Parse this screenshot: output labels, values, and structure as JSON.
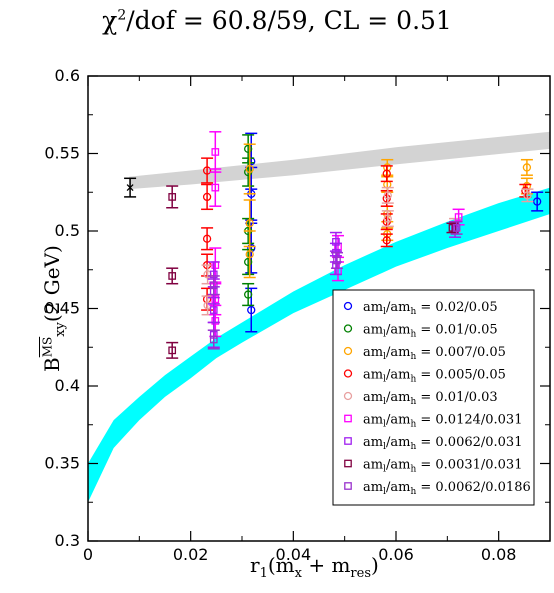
{
  "title": {
    "main": "χ",
    "sup": "2",
    "rest": "/dof = 60.8/59, CL = 0.51"
  },
  "xlabel": {
    "main": "r",
    "sub1": "1",
    "mid": "(m",
    "sub2": "x",
    "mid2": " + m",
    "sub3": "res",
    "end": ")"
  },
  "ylabel": {
    "main": "B",
    "sub": "xy",
    "sup": "MS",
    "end": "(2 GeV)"
  },
  "chart_data": {
    "type": "scatter",
    "xlim": [
      0,
      0.09
    ],
    "ylim": [
      0.3,
      0.6
    ],
    "xticks": [
      "0",
      "0.02",
      "0.04",
      "0.06",
      "0.08"
    ],
    "yticks": [
      "0.3",
      "0.35",
      "0.4",
      "0.45",
      "0.5",
      "0.55",
      "0.6"
    ],
    "xtick_values": [
      0,
      0.02,
      0.04,
      0.06,
      0.08
    ],
    "ytick_values": [
      0.3,
      0.35,
      0.4,
      0.45,
      0.5,
      0.55,
      0.6
    ],
    "legend_position": "bottom-right",
    "bands": [
      {
        "name": "grey-band",
        "color": "#d3d3d3",
        "x": [
          0.008,
          0.02,
          0.04,
          0.06,
          0.09
        ],
        "lower": [
          0.527,
          0.53,
          0.536,
          0.543,
          0.553
        ],
        "upper": [
          0.535,
          0.539,
          0.546,
          0.554,
          0.564
        ]
      },
      {
        "name": "cyan-band",
        "color": "#00ffff",
        "x": [
          0,
          0.005,
          0.01,
          0.015,
          0.02,
          0.025,
          0.03,
          0.04,
          0.05,
          0.06,
          0.07,
          0.08,
          0.09
        ],
        "lower": [
          0.325,
          0.36,
          0.378,
          0.393,
          0.405,
          0.418,
          0.428,
          0.447,
          0.462,
          0.477,
          0.489,
          0.5,
          0.511
        ],
        "upper": [
          0.35,
          0.378,
          0.393,
          0.407,
          0.419,
          0.431,
          0.441,
          0.461,
          0.478,
          0.493,
          0.506,
          0.518,
          0.528
        ]
      }
    ],
    "extra_point": {
      "x": 0.0082,
      "y": 0.528,
      "err": 0.006,
      "color": "#000000",
      "marker": "x"
    },
    "series": [
      {
        "name": "am_l/am_h = 0.02/0.05",
        "legend_main": "am",
        "legend_sub1": "l",
        "legend_mid": "/am",
        "legend_sub2": "h",
        "legend_val": " = 0.02/0.05",
        "color": "#0000ff",
        "marker": "circle",
        "points": [
          [
            0.0318,
            0.545,
            0.018
          ],
          [
            0.0318,
            0.524,
            0.017
          ],
          [
            0.0318,
            0.489,
            0.016
          ],
          [
            0.0318,
            0.449,
            0.014
          ],
          [
            0.0875,
            0.519,
            0.006
          ]
        ]
      },
      {
        "name": "am_l/am_h = 0.01/0.05",
        "legend_main": "am",
        "legend_sub1": "l",
        "legend_mid": "/am",
        "legend_sub2": "h",
        "legend_val": " = 0.01/0.05",
        "color": "#008000",
        "marker": "circle",
        "points": [
          [
            0.0312,
            0.553,
            0.009
          ],
          [
            0.0312,
            0.538,
            0.009
          ],
          [
            0.0312,
            0.5,
            0.008
          ],
          [
            0.0312,
            0.48,
            0.008
          ],
          [
            0.0312,
            0.459,
            0.007
          ]
        ]
      },
      {
        "name": "am_l/am_h = 0.007/0.05",
        "legend_main": "am",
        "legend_sub1": "l",
        "legend_mid": "/am",
        "legend_sub2": "h",
        "legend_val": " = 0.007/0.05",
        "color": "#ffa500",
        "marker": "circle",
        "points": [
          [
            0.0315,
            0.54,
            0.016
          ],
          [
            0.0315,
            0.505,
            0.015
          ],
          [
            0.0315,
            0.485,
            0.015
          ],
          [
            0.0583,
            0.541,
            0.005
          ],
          [
            0.0583,
            0.53,
            0.005
          ],
          [
            0.0583,
            0.511,
            0.005
          ],
          [
            0.0583,
            0.498,
            0.004
          ],
          [
            0.0855,
            0.541,
            0.005
          ],
          [
            0.0855,
            0.529,
            0.005
          ]
        ]
      },
      {
        "name": "am_l/am_h = 0.005/0.05",
        "legend_main": "am",
        "legend_sub1": "l",
        "legend_mid": "/am",
        "legend_sub2": "h",
        "legend_val": " = 0.005/0.05",
        "color": "#ff0000",
        "marker": "circle",
        "points": [
          [
            0.0232,
            0.539,
            0.008
          ],
          [
            0.0232,
            0.522,
            0.008
          ],
          [
            0.0232,
            0.495,
            0.007
          ],
          [
            0.0232,
            0.478,
            0.007
          ],
          [
            0.0232,
            0.456,
            0.007
          ],
          [
            0.0582,
            0.537,
            0.005
          ],
          [
            0.0582,
            0.521,
            0.005
          ],
          [
            0.0582,
            0.506,
            0.005
          ],
          [
            0.0582,
            0.494,
            0.004
          ],
          [
            0.0852,
            0.526,
            0.004
          ]
        ]
      },
      {
        "name": "am_l/am_h = 0.01/0.03",
        "legend_main": "am",
        "legend_sub1": "l",
        "legend_mid": "/am",
        "legend_sub2": "h",
        "legend_val": " = 0.01/0.03",
        "color": "#e8a0a0",
        "marker": "circle",
        "points": [
          [
            0.0233,
            0.472,
            0.006
          ],
          [
            0.0233,
            0.452,
            0.006
          ],
          [
            0.0584,
            0.523,
            0.005
          ],
          [
            0.0584,
            0.508,
            0.005
          ],
          [
            0.0856,
            0.523,
            0.004
          ],
          [
            0.0715,
            0.504,
            0.004
          ]
        ]
      },
      {
        "name": "am_l/am_h = 0.0124/0.031",
        "legend_main": "am",
        "legend_sub1": "l",
        "legend_mid": "/am",
        "legend_sub2": "h",
        "legend_val": " = 0.0124/0.031",
        "color": "#ff00ff",
        "marker": "square",
        "points": [
          [
            0.0248,
            0.551,
            0.013
          ],
          [
            0.0248,
            0.528,
            0.012
          ],
          [
            0.0248,
            0.478,
            0.011
          ],
          [
            0.0248,
            0.456,
            0.01
          ],
          [
            0.0248,
            0.442,
            0.01
          ],
          [
            0.0487,
            0.49,
            0.007
          ],
          [
            0.0487,
            0.474,
            0.006
          ],
          [
            0.0722,
            0.509,
            0.005
          ]
        ]
      },
      {
        "name": "am_l/am_h = 0.0062/0.031",
        "legend_main": "am",
        "legend_sub1": "l",
        "legend_mid": "/am",
        "legend_sub2": "h",
        "legend_val": " = 0.0062/0.031",
        "color": "#a020f0",
        "marker": "square",
        "points": [
          [
            0.0245,
            0.472,
            0.008
          ],
          [
            0.0245,
            0.461,
            0.008
          ],
          [
            0.0245,
            0.449,
            0.008
          ],
          [
            0.0245,
            0.433,
            0.008
          ],
          [
            0.0483,
            0.493,
            0.006
          ],
          [
            0.0483,
            0.486,
            0.006
          ],
          [
            0.0483,
            0.478,
            0.006
          ],
          [
            0.0715,
            0.501,
            0.005
          ]
        ]
      },
      {
        "name": "am_l/am_h = 0.0031/0.031",
        "legend_main": "am",
        "legend_sub1": "l",
        "legend_mid": "/am",
        "legend_sub2": "h",
        "legend_val": " = 0.0031/0.031",
        "color": "#800040",
        "marker": "square",
        "points": [
          [
            0.0164,
            0.522,
            0.007
          ],
          [
            0.0164,
            0.471,
            0.005
          ],
          [
            0.0164,
            0.423,
            0.005
          ],
          [
            0.071,
            0.502,
            0.003
          ]
        ]
      },
      {
        "name": "am_l/am_h = 0.0062/0.0186",
        "legend_main": "am",
        "legend_sub1": "l",
        "legend_mid": "/am",
        "legend_sub2": "h",
        "legend_val": " = 0.0062/0.0186",
        "color": "#9a32cd",
        "marker": "square",
        "points": [
          [
            0.0245,
            0.43,
            0.006
          ],
          [
            0.0245,
            0.465,
            0.006
          ],
          [
            0.0485,
            0.481,
            0.005
          ],
          [
            0.0718,
            0.502,
            0.004
          ]
        ]
      }
    ]
  }
}
